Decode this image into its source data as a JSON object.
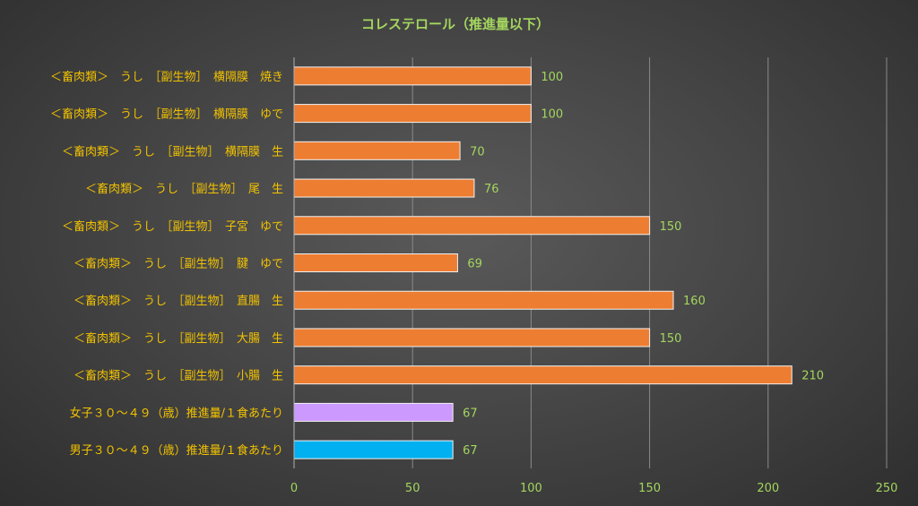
{
  "chart_data": {
    "type": "bar",
    "orientation": "horizontal",
    "title": "コレステロール（推進量以下）",
    "categories": [
      "＜畜肉類＞　うし　［副生物］　横隔膜　焼き",
      "＜畜肉類＞　うし　［副生物］　横隔膜　ゆで",
      "＜畜肉類＞　うし　［副生物］　横隔膜　生",
      "＜畜肉類＞　うし　［副生物］　尾　生",
      "＜畜肉類＞　うし　［副生物］　子宮　ゆで",
      "＜畜肉類＞　うし　［副生物］　腱　ゆで",
      "＜畜肉類＞　うし　［副生物］　直腸　生",
      "＜畜肉類＞　うし　［副生物］　大腸　生",
      "＜畜肉類＞　うし　［副生物］　小腸　生",
      "女子３０～４９（歳）推進量/１食あたり",
      "男子３０～４９（歳）推進量/１食あたり"
    ],
    "values": [
      100,
      100,
      70,
      76,
      150,
      69,
      160,
      150,
      210,
      67,
      67
    ],
    "bar_colors": [
      "#ed7d31",
      "#ed7d31",
      "#ed7d31",
      "#ed7d31",
      "#ed7d31",
      "#ed7d31",
      "#ed7d31",
      "#ed7d31",
      "#ed7d31",
      "#cc99ff",
      "#00b0f0"
    ],
    "xlim": [
      0,
      250
    ],
    "xticks": [
      0,
      50,
      100,
      150,
      200,
      250
    ],
    "xlabel": "",
    "ylabel": "",
    "grid": true,
    "legend": "none"
  }
}
